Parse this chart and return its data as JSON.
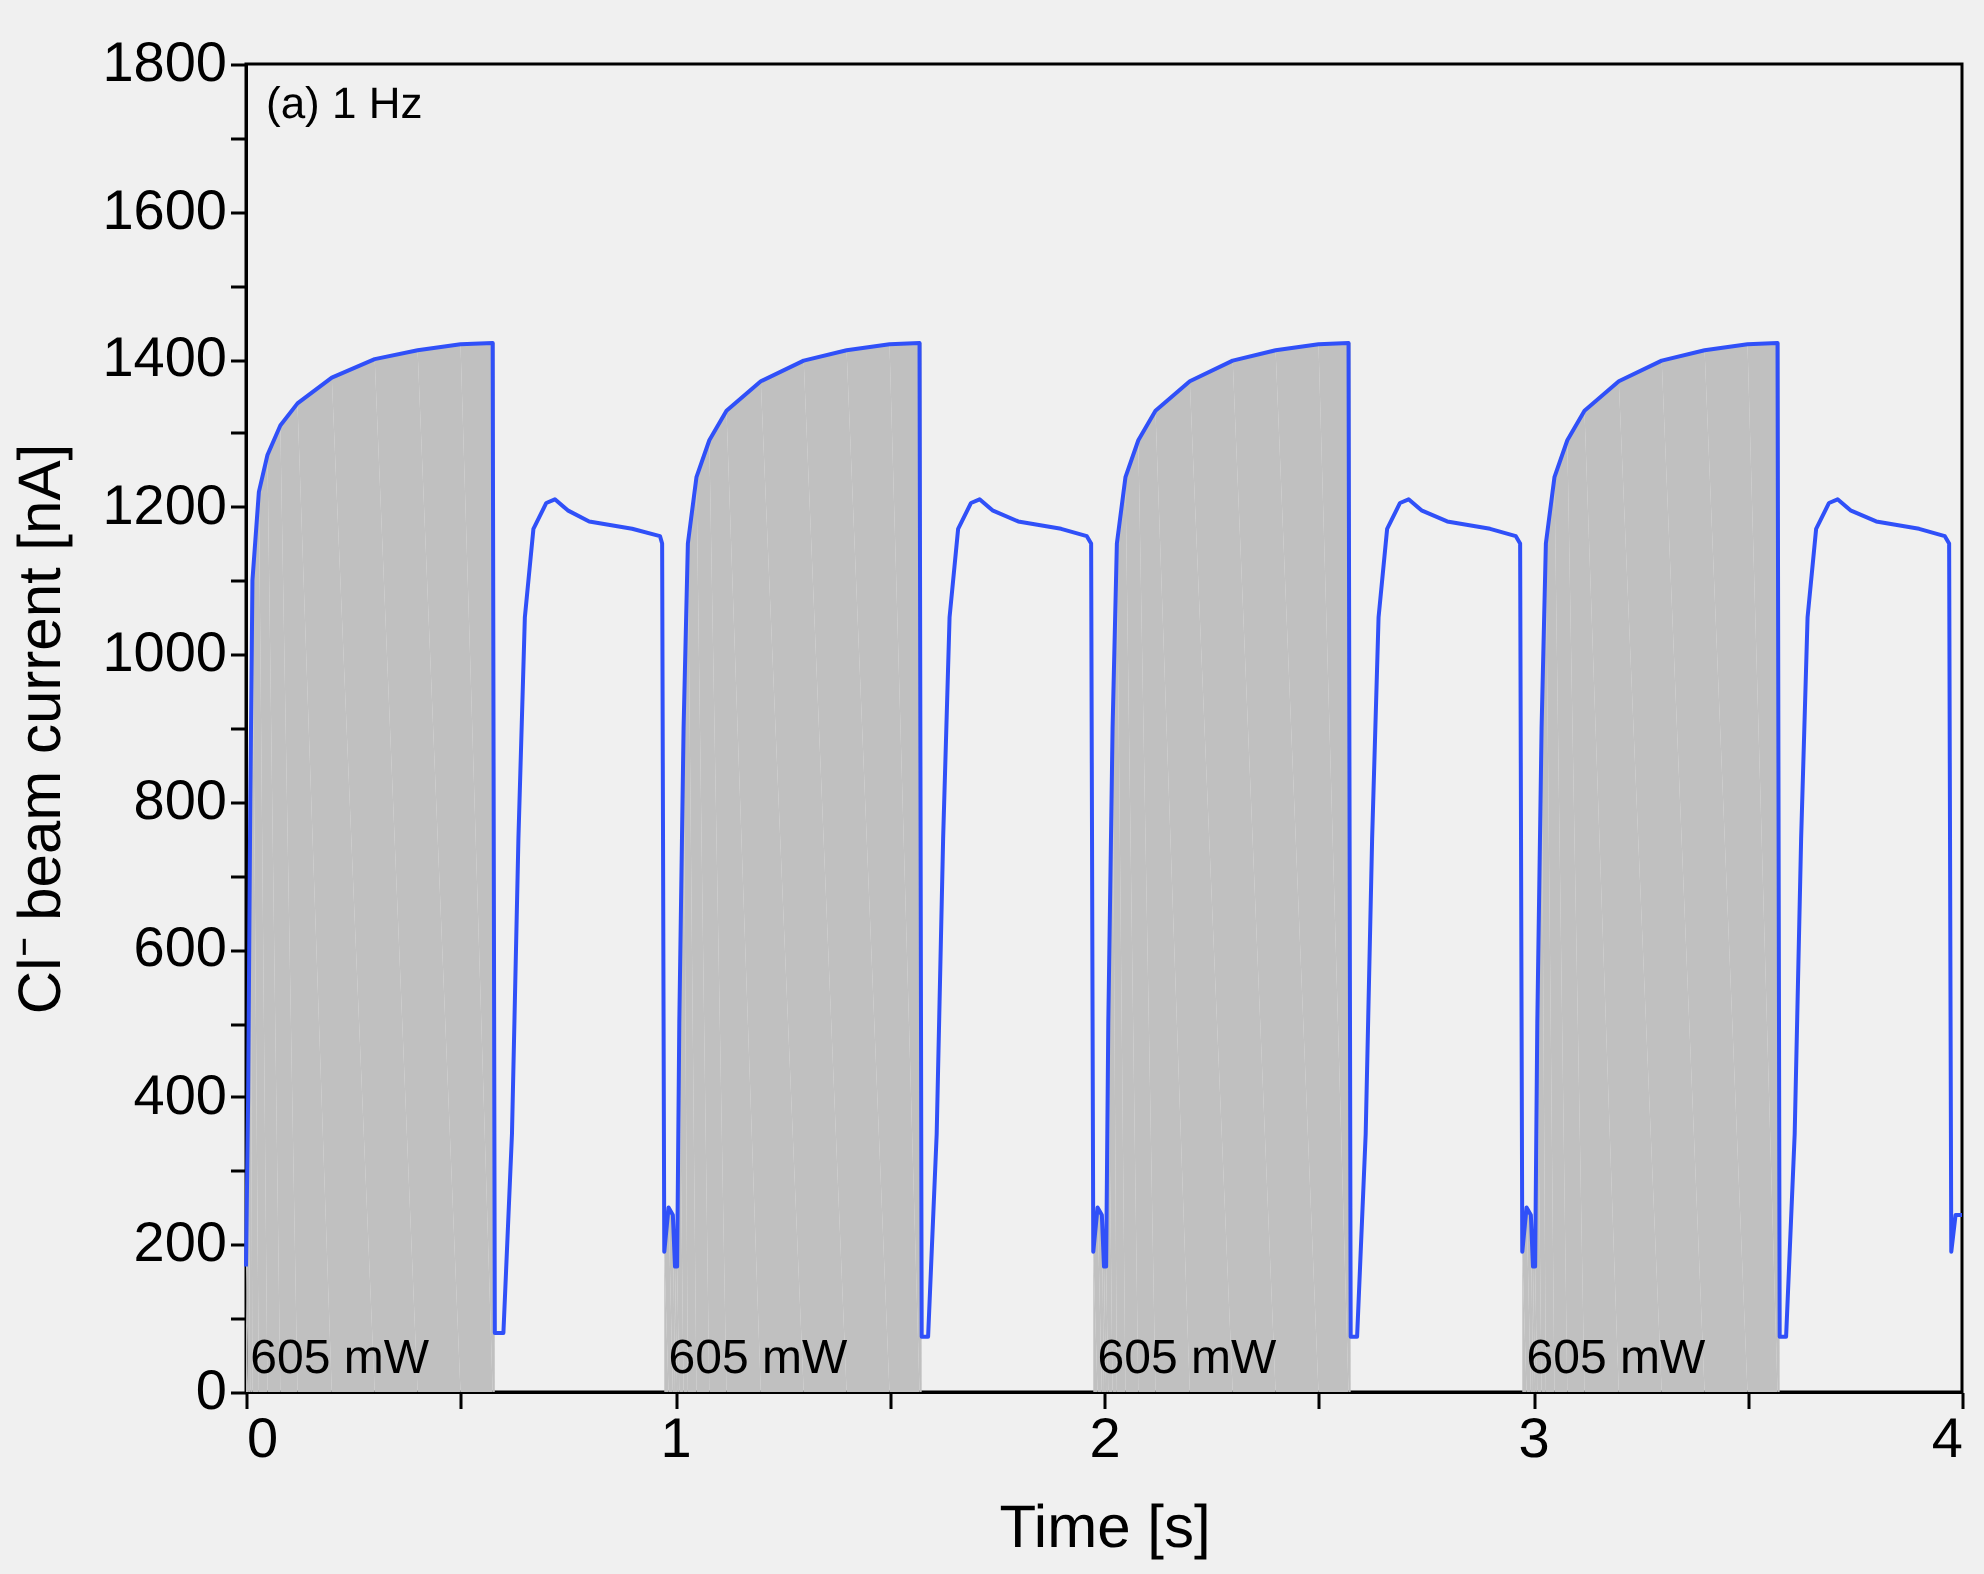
{
  "chart_data": {
    "type": "line",
    "xlabel": "Time [s]",
    "ylabel": "Cl⁻ beam current [nA]",
    "xlim": [
      0,
      4
    ],
    "ylim": [
      0,
      1800
    ],
    "xticks": [
      0,
      {
        "value": 0.5,
        "label": null
      },
      1,
      {
        "value": 1.5,
        "label": null
      },
      2,
      {
        "value": 2.5,
        "label": null
      },
      3,
      {
        "value": 3.5,
        "label": null
      },
      4
    ],
    "yticks": [
      0,
      {
        "value": 100,
        "label": null
      },
      200,
      {
        "value": 300,
        "label": null
      },
      400,
      {
        "value": 500,
        "label": null
      },
      600,
      {
        "value": 700,
        "label": null
      },
      800,
      {
        "value": 900,
        "label": null
      },
      1000,
      {
        "value": 1100,
        "label": null
      },
      1200,
      {
        "value": 1300,
        "label": null
      },
      1400,
      {
        "value": 1500,
        "label": null
      },
      1600,
      {
        "value": 1700,
        "label": null
      },
      1800
    ],
    "grid": false,
    "marker": "none",
    "line_style": "solid",
    "series": [
      {
        "type": "area",
        "color": "#c0c0c0",
        "x": [
          0,
          0.005,
          0.01,
          0.015,
          0.03,
          0.05,
          0.08,
          0.12,
          0.2,
          0.3,
          0.4,
          0.5,
          0.575,
          0.58
        ],
        "values": [
          170,
          400,
          800,
          1100,
          1220,
          1270,
          1310,
          1340,
          1375,
          1400,
          1412,
          1420,
          1422,
          1422
        ]
      },
      {
        "type": "area",
        "color": "#c0c0c0",
        "x": [
          0.975,
          0.985,
          0.995,
          1.0,
          1.005,
          1.01,
          1.02,
          1.03,
          1.05,
          1.08,
          1.12,
          1.2,
          1.3,
          1.4,
          1.5,
          1.57,
          1.575
        ],
        "values": [
          190,
          250,
          240,
          170,
          170,
          500,
          900,
          1150,
          1240,
          1290,
          1330,
          1370,
          1398,
          1412,
          1420,
          1422,
          1422
        ]
      },
      {
        "type": "area",
        "color": "#c0c0c0",
        "x": [
          1.975,
          1.985,
          1.995,
          2.0,
          2.005,
          2.01,
          2.02,
          2.03,
          2.05,
          2.08,
          2.12,
          2.2,
          2.3,
          2.4,
          2.5,
          2.57,
          2.575
        ],
        "values": [
          190,
          250,
          240,
          170,
          170,
          500,
          900,
          1150,
          1240,
          1290,
          1330,
          1370,
          1398,
          1412,
          1420,
          1422,
          1422
        ]
      },
      {
        "type": "area",
        "color": "#c0c0c0",
        "x": [
          2.975,
          2.985,
          2.995,
          3.0,
          3.005,
          3.01,
          3.02,
          3.03,
          3.05,
          3.08,
          3.12,
          3.2,
          3.3,
          3.4,
          3.5,
          3.57,
          3.575
        ],
        "values": [
          190,
          250,
          240,
          170,
          170,
          500,
          900,
          1150,
          1240,
          1290,
          1330,
          1370,
          1398,
          1412,
          1420,
          1422,
          1422
        ]
      },
      {
        "color": "#3050f8",
        "x": [
          0,
          0.005,
          0.01,
          0.015,
          0.03,
          0.05,
          0.08,
          0.12,
          0.2,
          0.3,
          0.4,
          0.5,
          0.575,
          0.58,
          0.6,
          0.62,
          0.635,
          0.65,
          0.67,
          0.7,
          0.72,
          0.75,
          0.8,
          0.9,
          0.965,
          0.97,
          0.975,
          0.985,
          0.995,
          1.0,
          1.005,
          1.01,
          1.02,
          1.03,
          1.05,
          1.08,
          1.12,
          1.2,
          1.3,
          1.4,
          1.5,
          1.57,
          1.575,
          1.59,
          1.61,
          1.625,
          1.64,
          1.66,
          1.69,
          1.71,
          1.74,
          1.8,
          1.9,
          1.96,
          1.97,
          1.975,
          1.985,
          1.995,
          2.0,
          2.005,
          2.01,
          2.02,
          2.03,
          2.05,
          2.08,
          2.12,
          2.2,
          2.3,
          2.4,
          2.5,
          2.57,
          2.575,
          2.59,
          2.61,
          2.625,
          2.64,
          2.66,
          2.69,
          2.71,
          2.74,
          2.8,
          2.9,
          2.96,
          2.97,
          2.975,
          2.985,
          2.995,
          3.0,
          3.005,
          3.01,
          3.02,
          3.03,
          3.05,
          3.08,
          3.12,
          3.2,
          3.3,
          3.4,
          3.5,
          3.57,
          3.575,
          3.59,
          3.61,
          3.625,
          3.64,
          3.66,
          3.69,
          3.71,
          3.74,
          3.8,
          3.9,
          3.96,
          3.97,
          3.975,
          3.985,
          4.0
        ],
        "values": [
          170,
          400,
          800,
          1100,
          1220,
          1270,
          1310,
          1340,
          1375,
          1400,
          1412,
          1420,
          1422,
          80,
          80,
          350,
          750,
          1050,
          1170,
          1205,
          1210,
          1195,
          1180,
          1170,
          1160,
          1150,
          190,
          250,
          240,
          170,
          170,
          500,
          900,
          1150,
          1240,
          1290,
          1330,
          1370,
          1398,
          1412,
          1420,
          1422,
          75,
          75,
          350,
          750,
          1050,
          1170,
          1205,
          1210,
          1195,
          1180,
          1170,
          1160,
          1150,
          190,
          250,
          240,
          170,
          170,
          500,
          900,
          1150,
          1240,
          1290,
          1330,
          1370,
          1398,
          1412,
          1420,
          1422,
          75,
          75,
          350,
          750,
          1050,
          1170,
          1205,
          1210,
          1195,
          1180,
          1170,
          1160,
          1150,
          190,
          250,
          240,
          170,
          170,
          500,
          900,
          1150,
          1240,
          1290,
          1330,
          1370,
          1398,
          1412,
          1420,
          1422,
          75,
          75,
          350,
          750,
          1050,
          1170,
          1205,
          1210,
          1195,
          1180,
          1170,
          1160,
          1150,
          190,
          240,
          240
        ]
      }
    ],
    "annotations": [
      "(a) 1 Hz",
      {
        "text": "605 mW",
        "x": 0.01,
        "y": 45
      },
      {
        "text": "605 mW",
        "x": 0.985,
        "y": 45
      },
      {
        "text": "605 mW",
        "x": 1.985,
        "y": 45
      },
      {
        "text": "605 mW",
        "x": 2.985,
        "y": 45
      }
    ]
  }
}
